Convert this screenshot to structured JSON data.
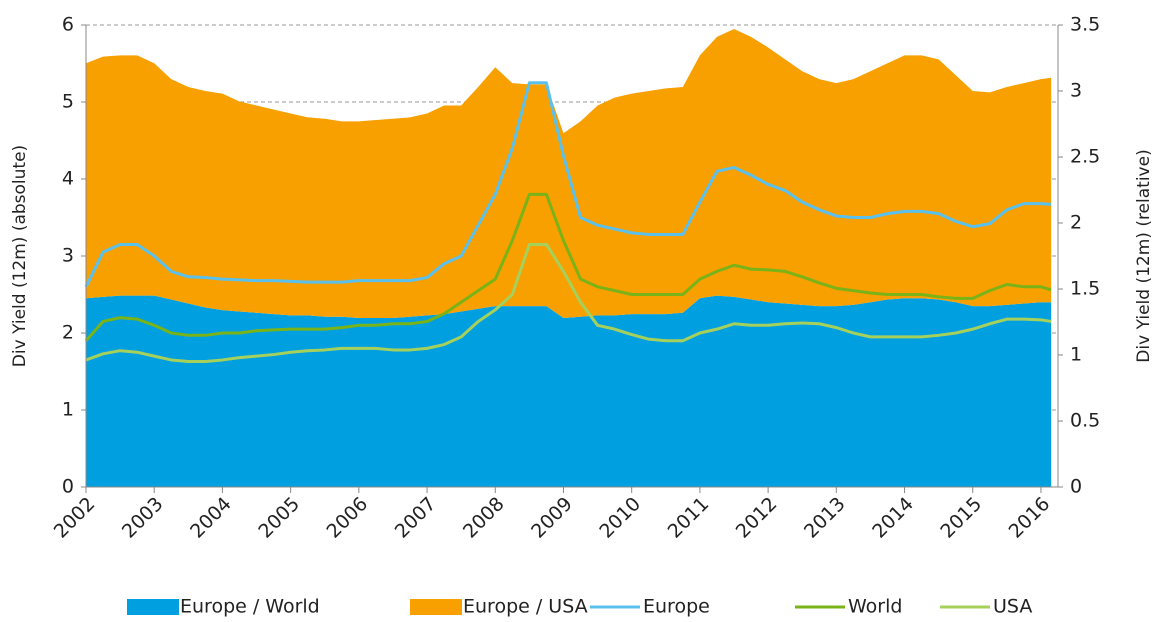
{
  "chart_data": {
    "type": "area_line",
    "ylabel": "Div Yield (12m) (absolute)",
    "y2label": "Div Yield (12m) (relative)",
    "x": [
      2002,
      2002.25,
      2002.5,
      2002.75,
      2003,
      2003.25,
      2003.5,
      2003.75,
      2004,
      2004.25,
      2004.5,
      2004.75,
      2005,
      2005.25,
      2005.5,
      2005.75,
      2006,
      2006.25,
      2006.5,
      2006.75,
      2007,
      2007.25,
      2007.5,
      2007.75,
      2008,
      2008.25,
      2008.5,
      2008.75,
      2009,
      2009.25,
      2009.5,
      2009.75,
      2010,
      2010.25,
      2010.5,
      2010.75,
      2011,
      2011.25,
      2011.5,
      2011.75,
      2012,
      2012.25,
      2012.5,
      2012.75,
      2013,
      2013.25,
      2013.5,
      2013.75,
      2014,
      2014.25,
      2014.5,
      2014.75,
      2015,
      2015.25,
      2015.5,
      2015.75,
      2016,
      2016.15
    ],
    "xlim": [
      2002,
      2016.25
    ],
    "xticks": [
      2002,
      2003,
      2004,
      2005,
      2006,
      2007,
      2008,
      2009,
      2010,
      2011,
      2012,
      2013,
      2014,
      2015,
      2016
    ],
    "ylim": [
      0,
      6
    ],
    "yticks": [
      0,
      1,
      2,
      3,
      4,
      5,
      6
    ],
    "y2lim": [
      0,
      3.5
    ],
    "y2ticks": [
      0,
      0.5,
      1,
      1.5,
      2,
      2.5,
      3,
      3.5
    ],
    "grid": true,
    "stacked": true,
    "series": [
      {
        "name": "Europe / World",
        "type": "area",
        "axis": "y2",
        "color": "#009fe0",
        "values": [
          1.43,
          1.44,
          1.45,
          1.45,
          1.45,
          1.42,
          1.39,
          1.36,
          1.34,
          1.33,
          1.32,
          1.31,
          1.3,
          1.3,
          1.29,
          1.29,
          1.28,
          1.28,
          1.28,
          1.29,
          1.3,
          1.31,
          1.33,
          1.35,
          1.37,
          1.37,
          1.37,
          1.37,
          1.28,
          1.29,
          1.3,
          1.3,
          1.31,
          1.31,
          1.31,
          1.32,
          1.43,
          1.45,
          1.44,
          1.42,
          1.4,
          1.39,
          1.38,
          1.37,
          1.37,
          1.38,
          1.4,
          1.42,
          1.43,
          1.43,
          1.42,
          1.4,
          1.37,
          1.37,
          1.38,
          1.39,
          1.4,
          1.4
        ]
      },
      {
        "name": "Europe / USA",
        "type": "area",
        "axis": "y2",
        "color": "#f7a000",
        "values": [
          1.78,
          1.82,
          1.82,
          1.82,
          1.76,
          1.67,
          1.64,
          1.64,
          1.64,
          1.59,
          1.57,
          1.55,
          1.53,
          1.5,
          1.5,
          1.48,
          1.49,
          1.5,
          1.51,
          1.51,
          1.53,
          1.58,
          1.56,
          1.68,
          1.81,
          1.69,
          1.68,
          1.68,
          1.4,
          1.48,
          1.59,
          1.65,
          1.67,
          1.69,
          1.71,
          1.71,
          1.84,
          1.96,
          2.03,
          1.99,
          1.93,
          1.85,
          1.77,
          1.72,
          1.69,
          1.71,
          1.75,
          1.79,
          1.84,
          1.84,
          1.82,
          1.72,
          1.63,
          1.62,
          1.65,
          1.67,
          1.69,
          1.7
        ]
      },
      {
        "name": "Europe",
        "type": "line",
        "color": "#5bc0ec",
        "values": [
          2.6,
          3.05,
          3.15,
          3.15,
          3.0,
          2.8,
          2.73,
          2.72,
          2.7,
          2.69,
          2.68,
          2.68,
          2.67,
          2.66,
          2.66,
          2.66,
          2.68,
          2.68,
          2.68,
          2.68,
          2.72,
          2.9,
          3.0,
          3.4,
          3.8,
          4.4,
          5.25,
          5.25,
          4.3,
          3.5,
          3.4,
          3.35,
          3.3,
          3.28,
          3.28,
          3.28,
          3.7,
          4.1,
          4.15,
          4.05,
          3.93,
          3.85,
          3.7,
          3.6,
          3.52,
          3.5,
          3.5,
          3.55,
          3.58,
          3.58,
          3.55,
          3.45,
          3.38,
          3.42,
          3.6,
          3.68,
          3.68,
          3.67
        ]
      },
      {
        "name": "World",
        "type": "line",
        "color": "#7ab317",
        "values": [
          1.9,
          2.15,
          2.2,
          2.18,
          2.1,
          2.0,
          1.97,
          1.97,
          2.0,
          2.0,
          2.03,
          2.04,
          2.05,
          2.05,
          2.05,
          2.07,
          2.1,
          2.1,
          2.12,
          2.12,
          2.15,
          2.25,
          2.4,
          2.55,
          2.7,
          3.2,
          3.8,
          3.8,
          3.2,
          2.7,
          2.6,
          2.55,
          2.5,
          2.5,
          2.5,
          2.5,
          2.7,
          2.8,
          2.88,
          2.83,
          2.82,
          2.8,
          2.73,
          2.65,
          2.58,
          2.55,
          2.52,
          2.5,
          2.5,
          2.5,
          2.47,
          2.45,
          2.45,
          2.55,
          2.63,
          2.6,
          2.6,
          2.56
        ]
      },
      {
        "name": "USA",
        "type": "line",
        "color": "#a6d05c",
        "values": [
          1.65,
          1.73,
          1.77,
          1.75,
          1.7,
          1.65,
          1.63,
          1.63,
          1.65,
          1.68,
          1.7,
          1.72,
          1.75,
          1.77,
          1.78,
          1.8,
          1.8,
          1.8,
          1.78,
          1.78,
          1.8,
          1.85,
          1.95,
          2.15,
          2.3,
          2.5,
          3.15,
          3.15,
          2.8,
          2.4,
          2.1,
          2.05,
          1.98,
          1.92,
          1.9,
          1.9,
          2.0,
          2.05,
          2.12,
          2.1,
          2.1,
          2.12,
          2.13,
          2.12,
          2.07,
          2.0,
          1.95,
          1.95,
          1.95,
          1.95,
          1.97,
          2.0,
          2.05,
          2.12,
          2.18,
          2.18,
          2.17,
          2.15
        ]
      }
    ]
  }
}
